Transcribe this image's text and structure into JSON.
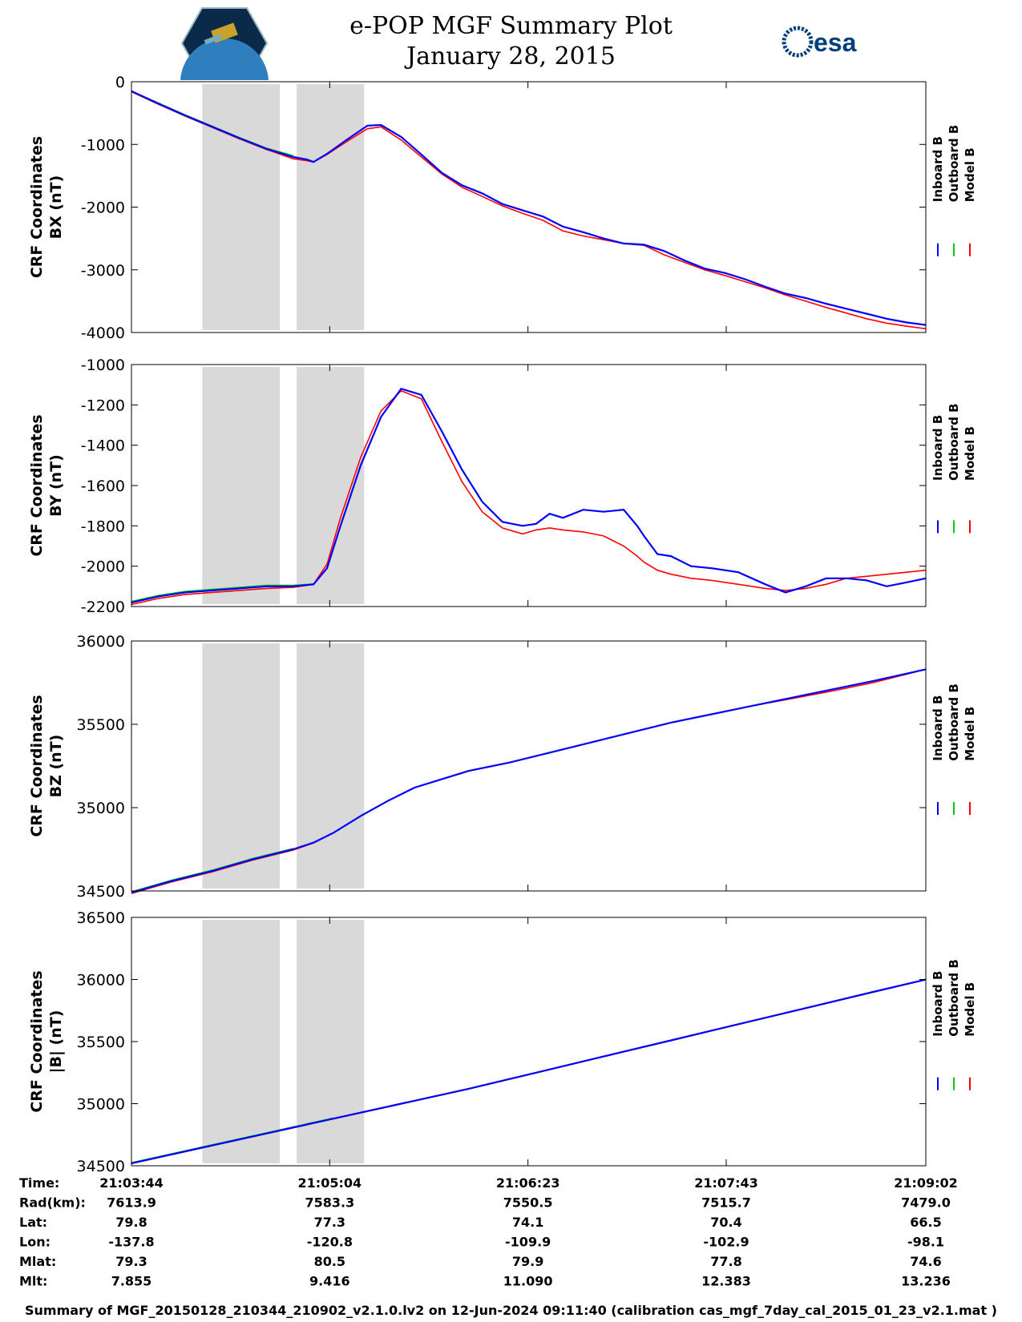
{
  "title": {
    "line1": "e-POP MGF Summary Plot",
    "line2": "January 28, 2015"
  },
  "logos": {
    "left": "cassiope-mission-logo",
    "right_text": "esa"
  },
  "colors": {
    "inboard": "#0000ff",
    "outboard": "#00cc00",
    "model": "#ff0000",
    "shade": "#d9d9d9"
  },
  "legend": [
    "Inboard B",
    "Outboard B",
    "Model B"
  ],
  "chart_data": [
    {
      "type": "line",
      "ylabel_line1": "CRF Coordinates",
      "ylabel_line2": "BX (nT)",
      "ylim": [
        -4000,
        0
      ],
      "yticks": [
        0,
        -1000,
        -2000,
        -3000,
        -4000
      ],
      "tick_labels": [
        "0",
        "-1000",
        "-2000",
        "-3000",
        "-4000"
      ],
      "x": [
        0,
        40,
        80,
        120,
        160,
        200,
        240,
        260,
        270,
        290,
        320,
        350,
        370,
        400,
        430,
        460,
        490,
        520,
        550,
        580,
        610,
        640,
        670,
        700,
        730,
        760,
        790,
        820,
        850,
        880,
        910,
        940,
        970,
        1000,
        1030,
        1060,
        1090,
        1120,
        1150,
        1178
      ],
      "series": [
        {
          "name": "Inboard B",
          "values": [
            -150,
            -350,
            -540,
            -720,
            -900,
            -1070,
            -1200,
            -1240,
            -1280,
            -1150,
            -920,
            -700,
            -690,
            -880,
            -1160,
            -1450,
            -1650,
            -1780,
            -1950,
            -2050,
            -2150,
            -2310,
            -2400,
            -2500,
            -2580,
            -2600,
            -2700,
            -2850,
            -2980,
            -3050,
            -3150,
            -3270,
            -3380,
            -3450,
            -3540,
            -3620,
            -3700,
            -3780,
            -3840,
            -3880
          ]
        },
        {
          "name": "Outboard B",
          "values": [
            -150,
            -340,
            -530,
            -710,
            -890,
            -1060,
            -1180,
            null,
            null,
            null,
            null,
            null,
            null,
            null,
            null,
            null,
            null,
            null,
            null,
            null,
            null,
            null,
            null,
            null,
            null,
            null,
            null,
            null,
            null,
            null,
            null,
            null,
            null,
            null,
            null,
            null,
            null,
            null,
            null,
            null
          ]
        },
        {
          "name": "Model B",
          "values": [
            -160,
            -360,
            -550,
            -730,
            -910,
            -1080,
            -1230,
            -1260,
            -1280,
            -1160,
            -950,
            -750,
            -720,
            -930,
            -1200,
            -1470,
            -1680,
            -1830,
            -1980,
            -2100,
            -2210,
            -2380,
            -2460,
            -2520,
            -2580,
            -2610,
            -2760,
            -2880,
            -3000,
            -3090,
            -3190,
            -3290,
            -3400,
            -3500,
            -3600,
            -3690,
            -3780,
            -3850,
            -3900,
            -3940
          ]
        }
      ]
    },
    {
      "type": "line",
      "ylabel_line1": "CRF Coordinates",
      "ylabel_line2": "BY (nT)",
      "ylim": [
        -2200,
        -1000
      ],
      "yticks": [
        -1000,
        -1200,
        -1400,
        -1600,
        -1800,
        -2000,
        -2200
      ],
      "tick_labels": [
        "-1000",
        "-1200",
        "-1400",
        "-1600",
        "-1800",
        "-2000",
        "-2200"
      ],
      "x": [
        0,
        40,
        80,
        120,
        160,
        200,
        240,
        270,
        290,
        310,
        340,
        370,
        400,
        430,
        460,
        490,
        520,
        550,
        580,
        600,
        620,
        640,
        670,
        700,
        730,
        750,
        760,
        780,
        800,
        830,
        860,
        900,
        940,
        970,
        1000,
        1030,
        1060,
        1090,
        1120,
        1150,
        1178
      ],
      "series": [
        {
          "name": "Inboard B",
          "values": [
            -2180,
            -2150,
            -2130,
            -2120,
            -2110,
            -2100,
            -2100,
            -2090,
            -2010,
            -1800,
            -1500,
            -1260,
            -1120,
            -1150,
            -1330,
            -1520,
            -1680,
            -1780,
            -1800,
            -1790,
            -1740,
            -1760,
            -1720,
            -1730,
            -1720,
            -1800,
            -1850,
            -1940,
            -1950,
            -2000,
            -2010,
            -2030,
            -2090,
            -2130,
            -2100,
            -2060,
            -2060,
            -2070,
            -2100,
            -2080,
            -2060
          ]
        },
        {
          "name": "Outboard B",
          "values": [
            -2175,
            -2145,
            -2125,
            -2115,
            -2105,
            -2095,
            -2095,
            -2088,
            null,
            null,
            null,
            null,
            null,
            null,
            null,
            null,
            null,
            null,
            null,
            null,
            null,
            null,
            null,
            null,
            null,
            null,
            null,
            null,
            null,
            null,
            null,
            null,
            null,
            null,
            null,
            null,
            null,
            null,
            null,
            null,
            null
          ]
        },
        {
          "name": "Model B",
          "values": [
            -2190,
            -2160,
            -2140,
            -2130,
            -2120,
            -2110,
            -2105,
            -2090,
            -1990,
            -1760,
            -1460,
            -1230,
            -1130,
            -1170,
            -1380,
            -1580,
            -1730,
            -1810,
            -1840,
            -1820,
            -1810,
            -1820,
            -1830,
            -1850,
            -1900,
            -1950,
            -1980,
            -2020,
            -2040,
            -2060,
            -2070,
            -2090,
            -2110,
            -2120,
            -2110,
            -2090,
            -2060,
            -2050,
            -2040,
            -2030,
            -2020
          ]
        }
      ]
    },
    {
      "type": "line",
      "ylabel_line1": "CRF Coordinates",
      "ylabel_line2": "BZ (nT)",
      "ylim": [
        34500,
        36000
      ],
      "yticks": [
        36000,
        35500,
        35000,
        34500
      ],
      "tick_labels": [
        "36000",
        "35500",
        "35000",
        "34500"
      ],
      "x": [
        0,
        60,
        120,
        180,
        240,
        270,
        300,
        340,
        380,
        420,
        460,
        500,
        560,
        620,
        680,
        740,
        800,
        860,
        920,
        980,
        1040,
        1100,
        1178
      ],
      "series": [
        {
          "name": "Inboard B",
          "values": [
            34490,
            34560,
            34620,
            34690,
            34750,
            34790,
            34850,
            34950,
            35040,
            35120,
            35170,
            35220,
            35270,
            35330,
            35390,
            35450,
            35510,
            35560,
            35610,
            35660,
            35710,
            35760,
            35830
          ]
        },
        {
          "name": "Outboard B",
          "values": [
            34495,
            34565,
            34625,
            34695,
            34755,
            null,
            null,
            null,
            null,
            null,
            null,
            null,
            null,
            null,
            null,
            null,
            null,
            null,
            null,
            null,
            null,
            null,
            null
          ]
        },
        {
          "name": "Model B",
          "values": [
            34485,
            34555,
            34615,
            34685,
            34745,
            34788,
            34850,
            34950,
            35040,
            35120,
            35170,
            35220,
            35270,
            35330,
            35390,
            35450,
            35510,
            35560,
            35610,
            35655,
            35700,
            35750,
            35830
          ]
        }
      ]
    },
    {
      "type": "line",
      "ylabel_line1": "CRF Coordinates",
      "ylabel_line2": "|B| (nT)",
      "ylim": [
        34500,
        36500
      ],
      "yticks": [
        36500,
        36000,
        35500,
        35000,
        34500
      ],
      "tick_labels": [
        "36500",
        "36000",
        "35500",
        "35000",
        "34500"
      ],
      "x": [
        0,
        100,
        200,
        300,
        400,
        500,
        600,
        700,
        800,
        900,
        1000,
        1100,
        1178
      ],
      "series": [
        {
          "name": "Inboard B",
          "values": [
            34520,
            34640,
            34760,
            34880,
            35000,
            35120,
            35250,
            35380,
            35510,
            35640,
            35770,
            35900,
            36000
          ]
        },
        {
          "name": "Outboard B",
          "values": [
            34525,
            34645,
            34765,
            34885,
            null,
            null,
            null,
            null,
            null,
            null,
            null,
            null,
            null
          ]
        },
        {
          "name": "Model B",
          "values": [
            34518,
            34638,
            34758,
            34878,
            34998,
            35118,
            35248,
            35378,
            35508,
            35638,
            35768,
            35898,
            35998
          ]
        }
      ]
    }
  ],
  "shaded_intervals": [
    [
      105,
      220
    ],
    [
      245,
      345
    ]
  ],
  "x_tick_positions": [
    0,
    294,
    588,
    882,
    1178
  ],
  "table": {
    "row_labels": [
      "Time:",
      "Rad(km):",
      "Lat:",
      "Lon:",
      "Mlat:",
      "Mlt:"
    ],
    "columns": [
      [
        "21:03:44",
        "7613.9",
        "79.8",
        "-137.8",
        "79.3",
        "7.855"
      ],
      [
        "21:05:04",
        "7583.3",
        "77.3",
        "-120.8",
        "80.5",
        "9.416"
      ],
      [
        "21:06:23",
        "7550.5",
        "74.1",
        "-109.9",
        "79.9",
        "11.090"
      ],
      [
        "21:07:43",
        "7515.7",
        "70.4",
        "-102.9",
        "77.8",
        "12.383"
      ],
      [
        "21:09:02",
        "7479.0",
        "66.5",
        "-98.1",
        "74.6",
        "13.236"
      ]
    ]
  },
  "footer": "Summary of MGF_20150128_210344_210902_v2.1.0.lv2 on 12-Jun-2024 09:11:40 (calibration cas_mgf_7day_cal_2015_01_23_v2.1.mat )"
}
